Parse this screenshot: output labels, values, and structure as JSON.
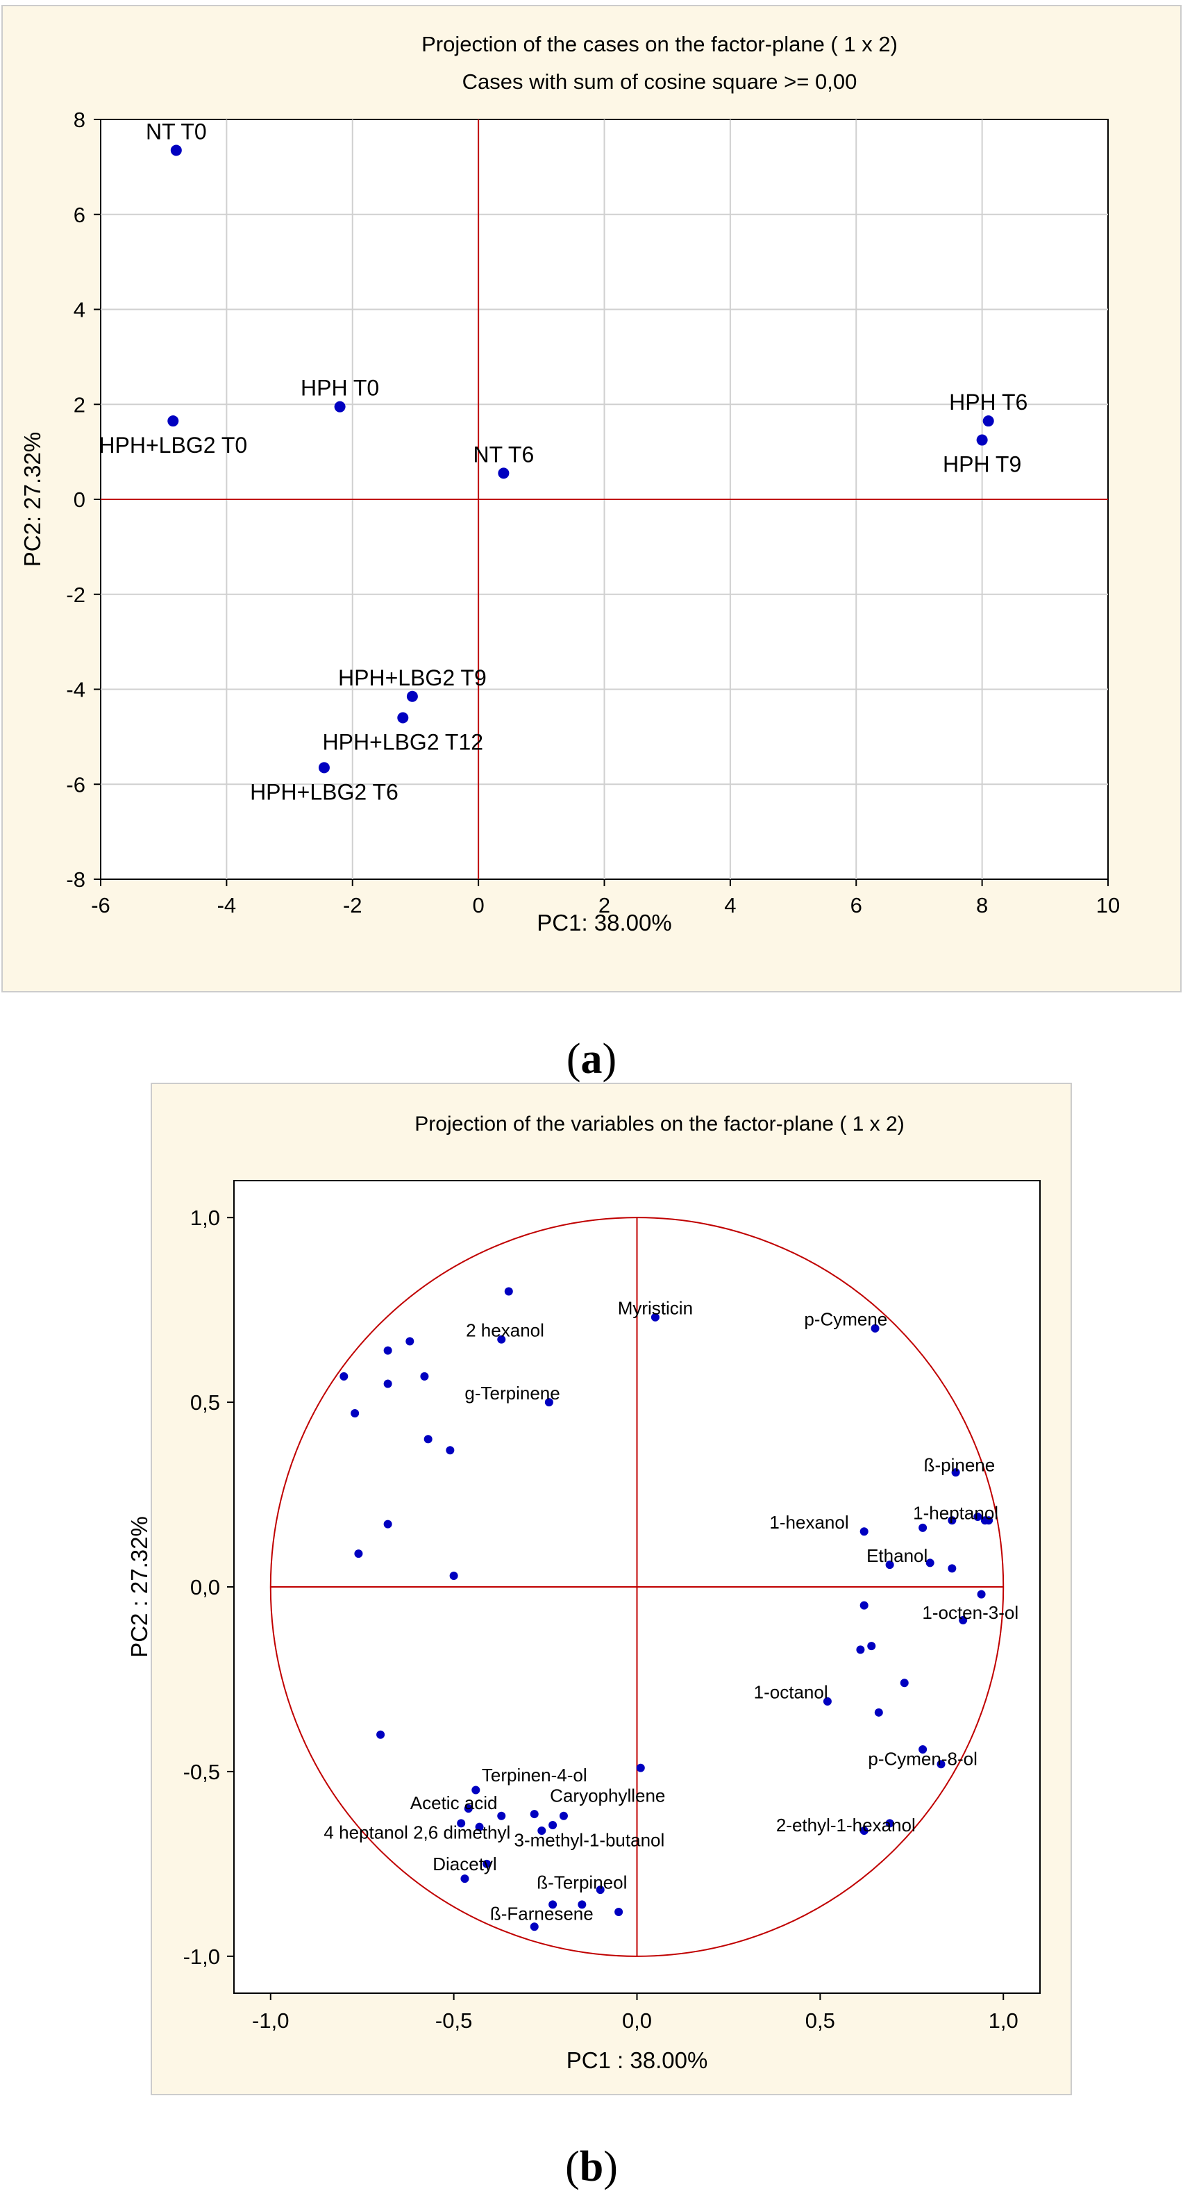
{
  "colors": {
    "background": "#fdf7e6",
    "frame": "#cccccc",
    "grid": "#d0d0d0",
    "axis_line": "#c00000",
    "point": "#0000c0"
  },
  "captions": {
    "a": "a",
    "b": "b"
  },
  "chart_data": [
    {
      "id": "a",
      "type": "scatter",
      "title": "Projection of the cases on the factor-plane (  1 x   2)",
      "subtitle": "Cases with sum of cosine square >=  0,00",
      "xlabel": "PC1: 38.00%",
      "ylabel": "PC2: 27.32%",
      "xlim": [
        -6,
        10
      ],
      "ylim": [
        -8,
        8
      ],
      "xticks": [
        -6,
        -4,
        -2,
        0,
        2,
        4,
        6,
        8,
        10
      ],
      "yticks": [
        -8,
        -6,
        -4,
        -2,
        0,
        2,
        4,
        6,
        8
      ],
      "xtick_labels": [
        "-6",
        "-4",
        "-2",
        "0",
        "2",
        "4",
        "6",
        "8",
        "10"
      ],
      "ytick_labels": [
        "-8",
        "-6",
        "-4",
        "-2",
        "0",
        "2",
        "4",
        "6",
        "8"
      ],
      "grid": true,
      "points": [
        {
          "label": "NT T0",
          "x": -4.8,
          "y": 7.35,
          "label_pos": "above"
        },
        {
          "label": "HPH T0",
          "x": -2.2,
          "y": 1.95,
          "label_pos": "above"
        },
        {
          "label": "HPH+LBG2 T0",
          "x": -4.85,
          "y": 1.65,
          "label_pos": "below"
        },
        {
          "label": "NT T6",
          "x": 0.4,
          "y": 0.55,
          "label_pos": "above"
        },
        {
          "label": "HPH T6",
          "x": 8.1,
          "y": 1.65,
          "label_pos": "above"
        },
        {
          "label": "HPH T9",
          "x": 8.0,
          "y": 1.25,
          "label_pos": "below"
        },
        {
          "label": "HPH+LBG2 T9",
          "x": -1.05,
          "y": -4.15,
          "label_pos": "above"
        },
        {
          "label": "HPH+LBG2 T12",
          "x": -1.2,
          "y": -4.6,
          "label_pos": "below"
        },
        {
          "label": "HPH+LBG2  T6",
          "x": -2.45,
          "y": -5.65,
          "label_pos": "below"
        }
      ]
    },
    {
      "id": "b",
      "type": "scatter",
      "title": "Projection of the variables on the factor-plane (  1 x   2)",
      "xlabel": "PC1 : 38.00%",
      "ylabel": "PC2 : 27.32%",
      "xlim": [
        -1.1,
        1.1
      ],
      "ylim": [
        -1.1,
        1.1
      ],
      "xticks": [
        -1.0,
        -0.5,
        0.0,
        0.5,
        1.0
      ],
      "yticks": [
        -1.0,
        -0.5,
        0.0,
        0.5,
        1.0
      ],
      "xtick_labels": [
        "-1,0",
        "-0,5",
        "0,0",
        "0,5",
        "1,0"
      ],
      "ytick_labels": [
        "-1,0",
        "-0,5",
        "0,0",
        "0,5",
        "1,0"
      ],
      "grid": false,
      "unit_circle": true,
      "labels": [
        {
          "text": "Myristicin",
          "x": 0.05,
          "y": 0.755,
          "anchor": "middle"
        },
        {
          "text": "p-Cymene",
          "x": 0.57,
          "y": 0.725,
          "anchor": "middle"
        },
        {
          "text": "2 hexanol",
          "x": -0.36,
          "y": 0.695,
          "anchor": "middle"
        },
        {
          "text": "g-Terpinene",
          "x": -0.34,
          "y": 0.525,
          "anchor": "middle"
        },
        {
          "text": "ß-pinene",
          "x": 0.88,
          "y": 0.33,
          "anchor": "middle"
        },
        {
          "text": "1-hexanol",
          "x": 0.47,
          "y": 0.175,
          "anchor": "middle"
        },
        {
          "text": "1-heptanol",
          "x": 0.87,
          "y": 0.2,
          "anchor": "middle"
        },
        {
          "text": "Ethanol",
          "x": 0.71,
          "y": 0.085,
          "anchor": "middle"
        },
        {
          "text": "1-octen-3-ol",
          "x": 0.91,
          "y": -0.07,
          "anchor": "middle"
        },
        {
          "text": "1-octanol",
          "x": 0.42,
          "y": -0.285,
          "anchor": "middle"
        },
        {
          "text": "p-Cymen-8-ol",
          "x": 0.78,
          "y": -0.465,
          "anchor": "middle"
        },
        {
          "text": "Terpinen-4-ol",
          "x": -0.28,
          "y": -0.51,
          "anchor": "middle"
        },
        {
          "text": "Caryophyllene",
          "x": -0.08,
          "y": -0.565,
          "anchor": "middle"
        },
        {
          "text": "Acetic acid",
          "x": -0.5,
          "y": -0.585,
          "anchor": "middle"
        },
        {
          "text": "2-ethyl-1-hexanol",
          "x": 0.57,
          "y": -0.645,
          "anchor": "middle"
        },
        {
          "text": "4 heptanol 2,6 dimethyl",
          "x": -0.6,
          "y": -0.665,
          "anchor": "middle"
        },
        {
          "text": "3-methyl-1-butanol",
          "x": -0.13,
          "y": -0.685,
          "anchor": "middle"
        },
        {
          "text": "Diacetyl",
          "x": -0.47,
          "y": -0.75,
          "anchor": "middle"
        },
        {
          "text": "ß-Terpineol",
          "x": -0.15,
          "y": -0.8,
          "anchor": "middle"
        },
        {
          "text": "ß-Farnesene",
          "x": -0.26,
          "y": -0.885,
          "anchor": "middle"
        }
      ],
      "points": [
        {
          "x": -0.35,
          "y": 0.8
        },
        {
          "x": 0.05,
          "y": 0.73
        },
        {
          "x": 0.65,
          "y": 0.7
        },
        {
          "x": -0.37,
          "y": 0.67
        },
        {
          "x": -0.62,
          "y": 0.665
        },
        {
          "x": -0.68,
          "y": 0.64
        },
        {
          "x": -0.8,
          "y": 0.57
        },
        {
          "x": -0.58,
          "y": 0.57
        },
        {
          "x": -0.68,
          "y": 0.55
        },
        {
          "x": -0.24,
          "y": 0.5
        },
        {
          "x": -0.77,
          "y": 0.47
        },
        {
          "x": -0.57,
          "y": 0.4
        },
        {
          "x": -0.51,
          "y": 0.37
        },
        {
          "x": 0.87,
          "y": 0.31
        },
        {
          "x": -0.68,
          "y": 0.17
        },
        {
          "x": -0.76,
          "y": 0.09
        },
        {
          "x": 0.93,
          "y": 0.19
        },
        {
          "x": 0.95,
          "y": 0.18
        },
        {
          "x": 0.96,
          "y": 0.18
        },
        {
          "x": 0.86,
          "y": 0.18
        },
        {
          "x": 0.78,
          "y": 0.16
        },
        {
          "x": 0.62,
          "y": 0.15
        },
        {
          "x": 0.69,
          "y": 0.06
        },
        {
          "x": 0.8,
          "y": 0.065
        },
        {
          "x": 0.86,
          "y": 0.05
        },
        {
          "x": -0.5,
          "y": 0.03
        },
        {
          "x": 0.94,
          "y": -0.02
        },
        {
          "x": 0.62,
          "y": -0.05
        },
        {
          "x": 0.89,
          "y": -0.09
        },
        {
          "x": 0.64,
          "y": -0.16
        },
        {
          "x": 0.61,
          "y": -0.17
        },
        {
          "x": 0.73,
          "y": -0.26
        },
        {
          "x": 0.52,
          "y": -0.31
        },
        {
          "x": 0.66,
          "y": -0.34
        },
        {
          "x": -0.7,
          "y": -0.4
        },
        {
          "x": 0.78,
          "y": -0.44
        },
        {
          "x": 0.83,
          "y": -0.48
        },
        {
          "x": 0.01,
          "y": -0.49
        },
        {
          "x": -0.44,
          "y": -0.55
        },
        {
          "x": -0.46,
          "y": -0.6
        },
        {
          "x": -0.37,
          "y": -0.62
        },
        {
          "x": -0.28,
          "y": -0.615
        },
        {
          "x": -0.2,
          "y": -0.62
        },
        {
          "x": -0.48,
          "y": -0.64
        },
        {
          "x": -0.23,
          "y": -0.645
        },
        {
          "x": -0.26,
          "y": -0.66
        },
        {
          "x": -0.43,
          "y": -0.65
        },
        {
          "x": 0.69,
          "y": -0.64
        },
        {
          "x": 0.62,
          "y": -0.66
        },
        {
          "x": -0.41,
          "y": -0.75
        },
        {
          "x": -0.47,
          "y": -0.79
        },
        {
          "x": -0.1,
          "y": -0.82
        },
        {
          "x": -0.15,
          "y": -0.86
        },
        {
          "x": -0.23,
          "y": -0.86
        },
        {
          "x": -0.05,
          "y": -0.88
        },
        {
          "x": -0.28,
          "y": -0.92
        }
      ]
    }
  ]
}
